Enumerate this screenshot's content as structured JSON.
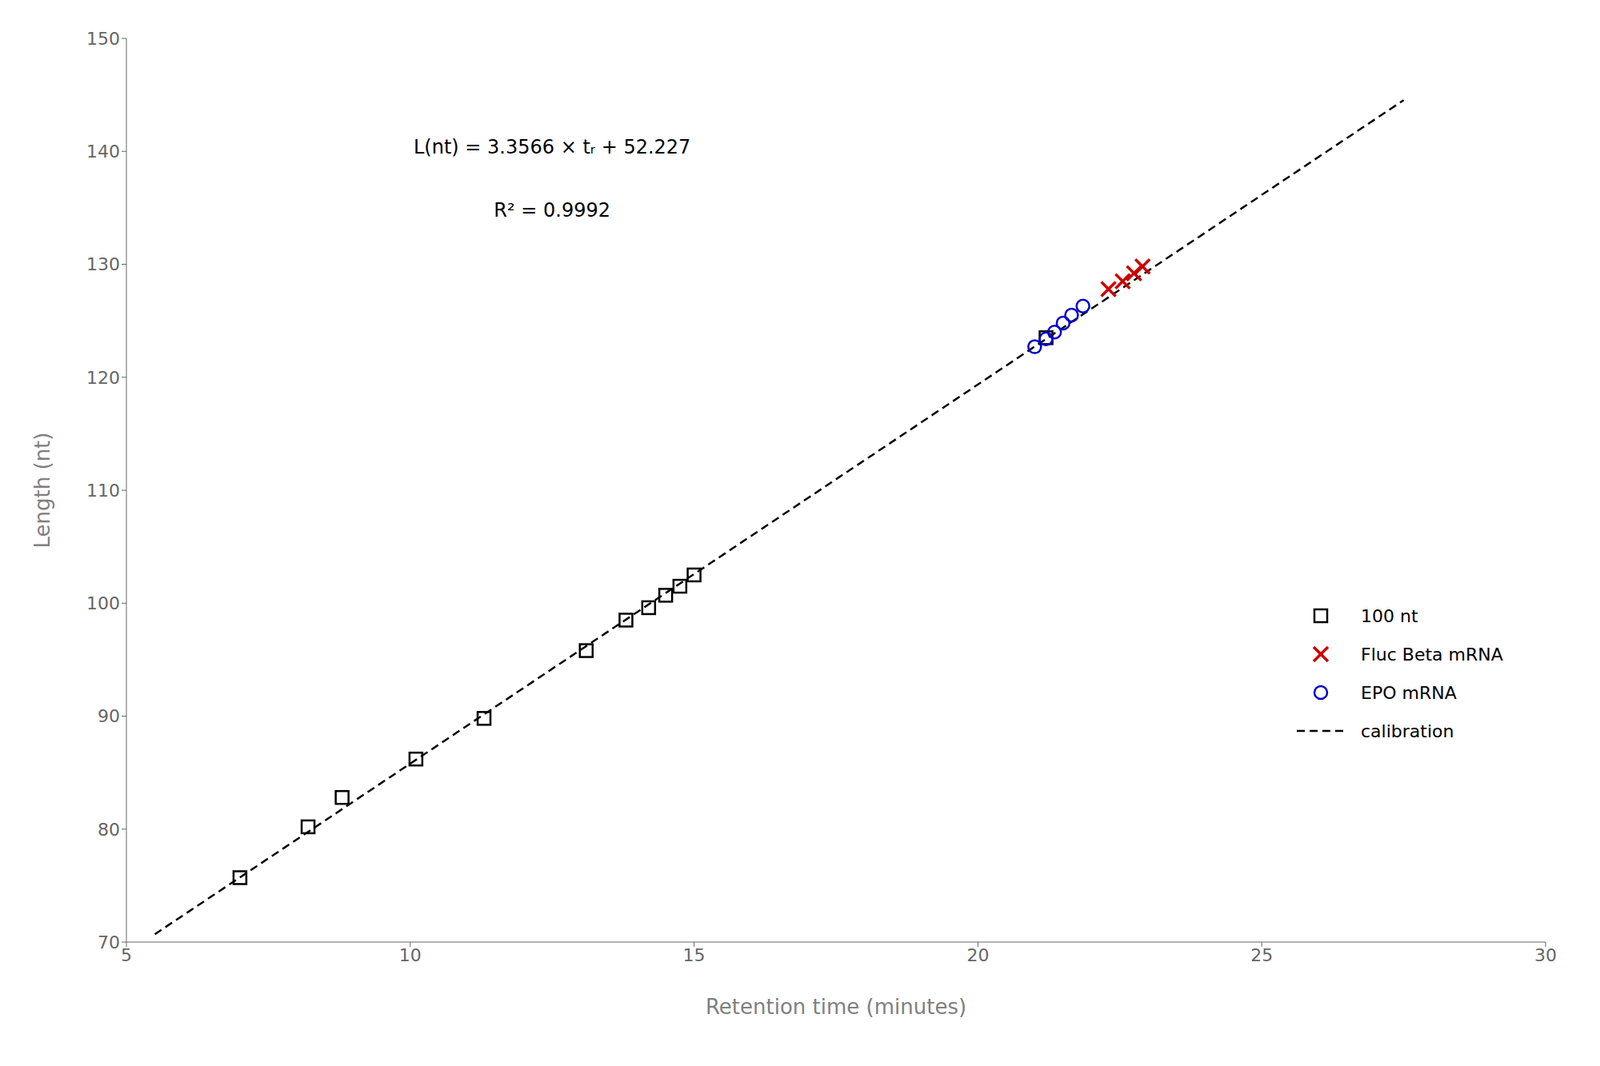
{
  "chart_data": {
    "type": "scatter",
    "xlabel": "Retention time (minutes)",
    "ylabel": "Length (nt)",
    "xlim": [
      5,
      30
    ],
    "ylim": [
      70,
      150
    ],
    "xticks": [
      5,
      10,
      15,
      20,
      25,
      30
    ],
    "yticks": [
      70,
      80,
      90,
      100,
      110,
      120,
      130,
      140,
      150
    ],
    "grid": false,
    "legend": "lower right",
    "annotations": [
      "L(nt) = 3.3566 × tᵣ + 52.227",
      "R² = 0.9992"
    ],
    "series": [
      {
        "name": "100 nt",
        "color": "#000000",
        "marker": "square",
        "x": [
          7.0,
          8.2,
          8.8,
          10.1,
          11.3,
          13.1,
          13.8,
          14.2,
          14.5,
          14.75,
          15.0,
          21.2
        ],
        "y": [
          75.7,
          80.2,
          82.8,
          86.2,
          89.8,
          95.8,
          98.5,
          99.6,
          100.7,
          101.5,
          102.5,
          123.5
        ]
      },
      {
        "name": "Fluc Beta mRNA",
        "color": "#cc0000",
        "marker": "x",
        "x": [
          22.3,
          22.55,
          22.75,
          22.9
        ],
        "y": [
          127.8,
          128.5,
          129.2,
          129.8
        ]
      },
      {
        "name": "EPO mRNA",
        "color": "#0000cc",
        "marker": "circle",
        "x": [
          21.0,
          21.2,
          21.35,
          21.5,
          21.65,
          21.85
        ],
        "y": [
          122.7,
          123.4,
          124.0,
          124.8,
          125.5,
          126.3
        ]
      },
      {
        "name": "calibration",
        "type": "line",
        "line_style": "dashed",
        "color": "#000000",
        "x": [
          5.5,
          27.5
        ],
        "y": [
          70.6883,
          144.5335
        ]
      }
    ]
  }
}
